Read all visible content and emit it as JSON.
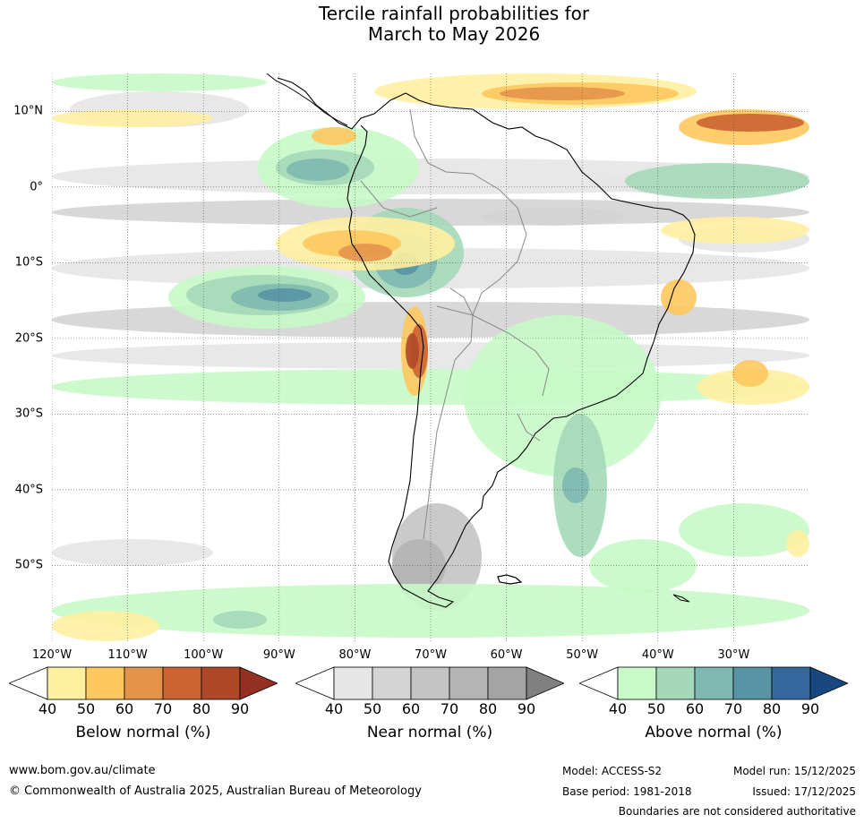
{
  "title": {
    "line1": "Tercile rainfall probabilities for",
    "line2": "March to May 2026"
  },
  "axes": {
    "latitude_labels": [
      "10°N",
      "0°",
      "10°S",
      "20°S",
      "30°S",
      "40°S",
      "50°S"
    ],
    "latitude_values": [
      10,
      0,
      -10,
      -20,
      -30,
      -40,
      -50
    ],
    "longitude_labels": [
      "120°W",
      "110°W",
      "100°W",
      "90°W",
      "80°W",
      "70°W",
      "60°W",
      "50°W",
      "40°W",
      "30°W"
    ],
    "longitude_values": [
      -120,
      -110,
      -100,
      -90,
      -80,
      -70,
      -60,
      -50,
      -40,
      -30
    ],
    "lat_range": [
      -60,
      15
    ],
    "lon_range": [
      -120,
      -20
    ]
  },
  "legend": {
    "below": {
      "label": "Below normal (%)",
      "ticks": [
        "40",
        "50",
        "60",
        "70",
        "80",
        "90"
      ],
      "colors": [
        "#ffffff",
        "#fff0a0",
        "#fdc85e",
        "#e4934a",
        "#cc6432",
        "#b04828",
        "#943020"
      ]
    },
    "near": {
      "label": "Near normal (%)",
      "ticks": [
        "40",
        "50",
        "60",
        "70",
        "80",
        "90"
      ],
      "colors": [
        "#ffffff",
        "#e6e6e6",
        "#d4d4d4",
        "#c4c4c4",
        "#b4b4b4",
        "#a4a4a4",
        "#808080"
      ]
    },
    "above": {
      "label": "Above normal (%)",
      "ticks": [
        "40",
        "50",
        "60",
        "70",
        "80",
        "90"
      ],
      "colors": [
        "#ffffff",
        "#c8fac8",
        "#a4d8b8",
        "#7eb8b0",
        "#5894a4",
        "#34689c",
        "#184880"
      ]
    }
  },
  "footer": {
    "url": "www.bom.gov.au/climate",
    "copyright": "© Commonwealth of Australia 2025, Australian Bureau of Meteorology",
    "model": "Model: ACCESS-S2",
    "base_period": "Base period: 1981-2018",
    "model_run": "Model run: 15/12/2025",
    "issued": "Issued: 17/12/2025",
    "disclaimer": "Boundaries are not considered authoritative"
  }
}
